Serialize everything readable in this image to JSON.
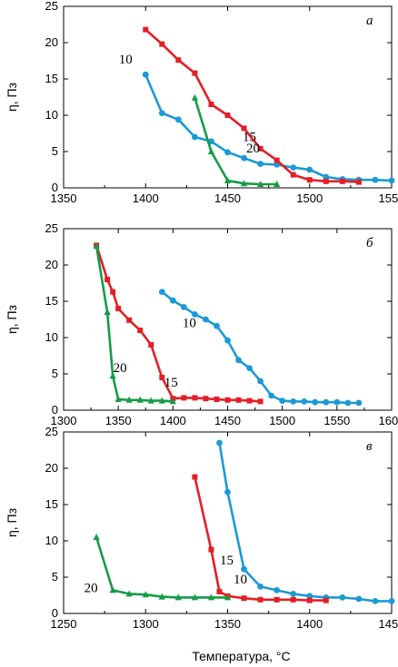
{
  "chart_data": [
    {
      "type": "line",
      "panel_label": "а",
      "ylabel": "η, Пз",
      "xlim": [
        1350,
        1550
      ],
      "ylim": [
        0,
        25
      ],
      "xticks": [
        1350,
        1400,
        1450,
        1500,
        1550
      ],
      "yticks": [
        0,
        5,
        10,
        15,
        20,
        25
      ],
      "series": [
        {
          "name": "10",
          "color": "#1b9ad6",
          "marker": "circle",
          "x": [
            1400,
            1410,
            1420,
            1430,
            1440,
            1450,
            1460,
            1470,
            1480,
            1490,
            1500,
            1510,
            1520,
            1530,
            1540,
            1550
          ],
          "y": [
            15.6,
            10.3,
            9.4,
            7.0,
            6.4,
            4.9,
            4.1,
            3.3,
            3.2,
            2.8,
            2.5,
            1.5,
            1.2,
            1.1,
            1.1,
            1.0
          ]
        },
        {
          "name": "15",
          "color": "#e41e26",
          "marker": "square",
          "x": [
            1400,
            1410,
            1420,
            1430,
            1440,
            1450,
            1460,
            1470,
            1480,
            1490,
            1500,
            1510,
            1520,
            1530
          ],
          "y": [
            21.8,
            19.8,
            17.6,
            15.8,
            11.5,
            10.0,
            8.2,
            5.4,
            3.8,
            1.8,
            1.1,
            0.9,
            0.9,
            0.8
          ]
        },
        {
          "name": "20",
          "color": "#169b47",
          "marker": "triangle",
          "x": [
            1430,
            1440,
            1450,
            1460,
            1470,
            1480
          ],
          "y": [
            12.4,
            5.0,
            1.0,
            0.6,
            0.5,
            0.5
          ]
        }
      ]
    },
    {
      "type": "line",
      "panel_label": "б",
      "ylabel": "η, Пз",
      "xlim": [
        1300,
        1600
      ],
      "ylim": [
        0,
        25
      ],
      "xticks": [
        1300,
        1350,
        1400,
        1450,
        1500,
        1550,
        1600
      ],
      "yticks": [
        0,
        5,
        10,
        15,
        20,
        25
      ],
      "series": [
        {
          "name": "10",
          "color": "#1b9ad6",
          "marker": "circle",
          "x": [
            1390,
            1400,
            1410,
            1420,
            1430,
            1440,
            1450,
            1460,
            1470,
            1480,
            1490,
            1500,
            1510,
            1520,
            1530,
            1540,
            1550,
            1560,
            1570
          ],
          "y": [
            16.3,
            15.1,
            14.2,
            13.2,
            12.5,
            11.6,
            9.6,
            6.9,
            5.8,
            4.0,
            2.0,
            1.3,
            1.2,
            1.2,
            1.1,
            1.1,
            1.1,
            1.0,
            1.0
          ]
        },
        {
          "name": "15",
          "color": "#e41e26",
          "marker": "square",
          "x": [
            1330,
            1340,
            1345,
            1350,
            1360,
            1370,
            1380,
            1390,
            1400,
            1410,
            1420,
            1430,
            1440,
            1450,
            1460,
            1470,
            1480
          ],
          "y": [
            22.7,
            18.0,
            16.3,
            14.0,
            12.4,
            11.0,
            9.0,
            4.5,
            1.6,
            1.7,
            1.7,
            1.6,
            1.5,
            1.4,
            1.4,
            1.3,
            1.2
          ]
        },
        {
          "name": "20",
          "color": "#169b47",
          "marker": "triangle",
          "x": [
            1330,
            1340,
            1345,
            1350,
            1360,
            1370,
            1380,
            1390,
            1400
          ],
          "y": [
            22.6,
            13.5,
            4.7,
            1.5,
            1.4,
            1.4,
            1.3,
            1.3,
            1.2
          ]
        }
      ]
    },
    {
      "type": "line",
      "panel_label": "в",
      "ylabel": "η, Пз",
      "xlabel": "Температура, °С",
      "xlim": [
        1250,
        1450
      ],
      "ylim": [
        0,
        25
      ],
      "xticks": [
        1250,
        1300,
        1350,
        1400,
        1450
      ],
      "yticks": [
        0,
        5,
        10,
        15,
        20,
        25
      ],
      "series": [
        {
          "name": "10",
          "color": "#1b9ad6",
          "marker": "circle",
          "x": [
            1345,
            1350,
            1360,
            1370,
            1380,
            1390,
            1400,
            1410,
            1420,
            1430,
            1440,
            1450
          ],
          "y": [
            23.5,
            16.7,
            6.1,
            3.7,
            3.2,
            2.7,
            2.4,
            2.2,
            2.2,
            2.0,
            1.7,
            1.7
          ]
        },
        {
          "name": "15",
          "color": "#e41e26",
          "marker": "square",
          "x": [
            1330,
            1340,
            1345,
            1350,
            1360,
            1370,
            1380,
            1390,
            1400,
            1410
          ],
          "y": [
            18.8,
            8.8,
            3.0,
            2.4,
            2.1,
            1.9,
            1.9,
            1.9,
            1.8,
            1.8
          ]
        },
        {
          "name": "20",
          "color": "#169b47",
          "marker": "triangle",
          "x": [
            1270,
            1280,
            1290,
            1300,
            1310,
            1320,
            1330,
            1340,
            1350
          ],
          "y": [
            10.5,
            3.2,
            2.7,
            2.6,
            2.3,
            2.2,
            2.2,
            2.2,
            2.2
          ]
        }
      ]
    }
  ]
}
